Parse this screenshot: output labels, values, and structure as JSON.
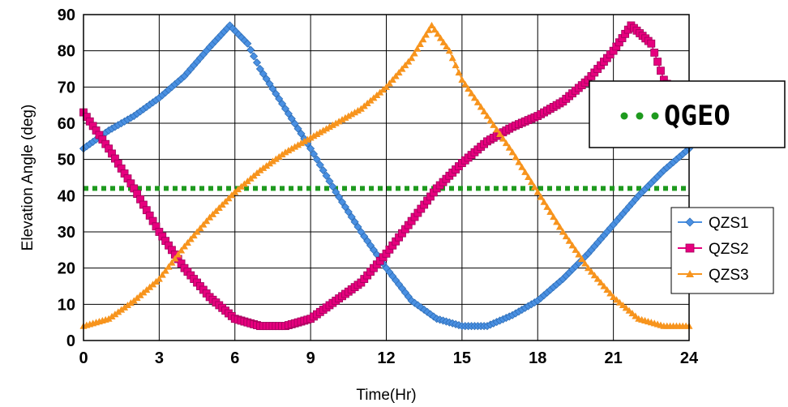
{
  "chart_data": {
    "type": "line",
    "title": "",
    "xlabel": "Time(Hr)",
    "ylabel": "Elevation Angle (deg)",
    "xlim": [
      0,
      24
    ],
    "ylim": [
      0,
      90
    ],
    "xticks": [
      "0",
      "3",
      "6",
      "9",
      "12",
      "15",
      "18",
      "21",
      "24"
    ],
    "yticks": [
      "0",
      "10",
      "20",
      "30",
      "40",
      "50",
      "60",
      "70",
      "80",
      "90"
    ],
    "grid": true,
    "legend_position": "bottom-right",
    "series": [
      {
        "name": "QZS1",
        "color": "#4a90e2",
        "marker": "diamond",
        "points": [
          [
            0,
            53
          ],
          [
            1,
            58
          ],
          [
            2,
            62
          ],
          [
            3,
            67
          ],
          [
            4,
            73
          ],
          [
            5,
            81
          ],
          [
            5.8,
            87
          ],
          [
            6.5,
            82
          ],
          [
            7,
            75
          ],
          [
            8,
            64
          ],
          [
            9,
            53
          ],
          [
            10,
            41
          ],
          [
            11,
            30
          ],
          [
            12,
            20
          ],
          [
            13,
            11
          ],
          [
            14,
            6
          ],
          [
            15,
            4
          ],
          [
            16,
            4
          ],
          [
            17,
            7
          ],
          [
            18,
            11
          ],
          [
            19,
            17
          ],
          [
            20,
            24
          ],
          [
            21,
            32
          ],
          [
            22,
            40
          ],
          [
            23,
            47
          ],
          [
            24,
            53
          ]
        ]
      },
      {
        "name": "QZS2",
        "color": "#e6007e",
        "marker": "square",
        "points": [
          [
            0,
            63
          ],
          [
            1,
            53
          ],
          [
            2,
            42
          ],
          [
            3,
            30
          ],
          [
            4,
            20
          ],
          [
            5,
            12
          ],
          [
            6,
            6
          ],
          [
            7,
            4
          ],
          [
            8,
            4
          ],
          [
            9,
            6
          ],
          [
            10,
            11
          ],
          [
            11,
            16
          ],
          [
            12,
            24
          ],
          [
            13,
            33
          ],
          [
            14,
            42
          ],
          [
            15,
            49
          ],
          [
            16,
            55
          ],
          [
            17,
            59
          ],
          [
            18,
            62
          ],
          [
            19,
            66
          ],
          [
            20,
            72
          ],
          [
            21,
            80
          ],
          [
            21.7,
            87
          ],
          [
            22.5,
            82
          ],
          [
            23,
            72
          ],
          [
            24,
            63
          ]
        ]
      },
      {
        "name": "QZS3",
        "color": "#f7941d",
        "marker": "triangle",
        "points": [
          [
            0,
            4
          ],
          [
            1,
            6
          ],
          [
            2,
            11
          ],
          [
            3,
            17
          ],
          [
            4,
            26
          ],
          [
            5,
            34
          ],
          [
            6,
            41
          ],
          [
            7,
            47
          ],
          [
            8,
            52
          ],
          [
            9,
            56
          ],
          [
            10,
            60
          ],
          [
            11,
            64
          ],
          [
            12,
            70
          ],
          [
            13,
            78
          ],
          [
            13.8,
            87
          ],
          [
            14.5,
            80
          ],
          [
            15,
            72
          ],
          [
            16,
            62
          ],
          [
            17,
            52
          ],
          [
            18,
            41
          ],
          [
            19,
            30
          ],
          [
            20,
            20
          ],
          [
            21,
            12
          ],
          [
            22,
            6
          ],
          [
            23,
            4
          ],
          [
            24,
            4
          ]
        ]
      },
      {
        "name": "QGEO",
        "color": "#1e9a1e",
        "style": "dotted",
        "points": [
          [
            0,
            42
          ],
          [
            24,
            42
          ]
        ]
      }
    ],
    "legend": [
      "QZS1",
      "QZS2",
      "QZS3"
    ],
    "annotation": "QGEO"
  }
}
